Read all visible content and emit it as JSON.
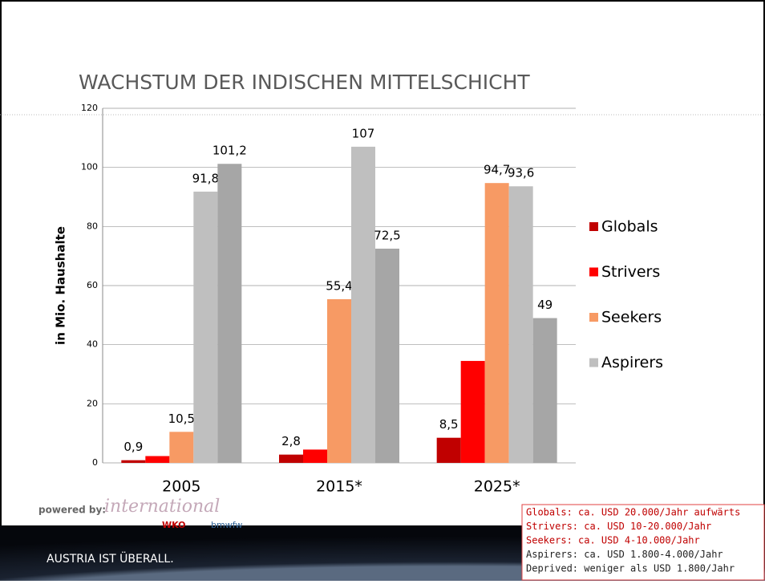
{
  "chart_data": {
    "type": "bar",
    "title": "WACHSTUM DER INDISCHEN MITTELSCHICHT",
    "y_label": "in Mio. Haushalte",
    "categories": [
      "2005",
      "2015*",
      "2025*"
    ],
    "series": [
      {
        "name": "Globals",
        "color": "#c00000",
        "values": [
          0.9,
          2.8,
          8.5
        ],
        "value_labels": [
          "0,9",
          "2,8",
          "8,5"
        ]
      },
      {
        "name": "Strivers",
        "color": "#ff0000",
        "values": [
          2.3,
          4.5,
          34.5
        ]
      },
      {
        "name": "Seekers",
        "color": "#f79a64",
        "values": [
          10.5,
          55.4,
          94.7
        ],
        "value_labels": [
          "10,5",
          "55,4",
          "94,7"
        ]
      },
      {
        "name": "Aspirers",
        "color": "#bfbfbf",
        "values": [
          91.8,
          107,
          93.6
        ],
        "value_labels": [
          "91,8",
          "107",
          "93,6"
        ]
      },
      {
        "color": "#a6a6a6",
        "values": [
          101.2,
          72.5,
          49
        ],
        "value_labels": [
          "101,2",
          "72,5",
          "49"
        ]
      }
    ],
    "ylim": [
      0,
      120
    ],
    "yticks": [
      0,
      20,
      40,
      60,
      80,
      100,
      120
    ],
    "grid": true,
    "legend": "right"
  },
  "notes": [
    {
      "text": "Globals: ca. USD 20.000/Jahr aufwärts",
      "color": "#c00000"
    },
    {
      "text": "Strivers: ca. USD 10-20.000/Jahr",
      "color": "#c00000"
    },
    {
      "text": "Seekers: ca. USD 4-10.000/Jahr",
      "color": "#c00000"
    },
    {
      "text": "Aspirers: ca. USD 1.800-4.000/Jahr",
      "color": "#222222"
    },
    {
      "text": "Deprived: weniger als USD 1.800/Jahr",
      "color": "#222222"
    }
  ],
  "footer": {
    "powered_by": "powered by:",
    "logo": "international",
    "wko": "WKO",
    "bmwfw": "bmwfw",
    "slogan": "AUSTRIA IST ÜBERALL."
  }
}
